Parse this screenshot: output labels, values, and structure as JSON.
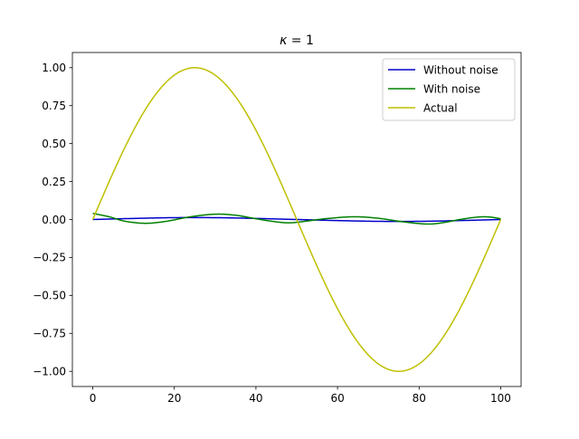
{
  "chart_data": {
    "type": "line",
    "title": "κ = 1",
    "title_parts": {
      "symbol": "κ",
      "rest": " = 1"
    },
    "xlabel": "",
    "ylabel": "",
    "xlim": [
      -5,
      105
    ],
    "ylim": [
      -1.1,
      1.1
    ],
    "xticks": [
      0,
      20,
      40,
      60,
      80,
      100
    ],
    "xtick_labels": [
      "0",
      "20",
      "40",
      "60",
      "80",
      "100"
    ],
    "yticks": [
      -1.0,
      -0.75,
      -0.5,
      -0.25,
      0.0,
      0.25,
      0.5,
      0.75,
      1.0
    ],
    "ytick_labels": [
      "−1.00",
      "−0.75",
      "−0.50",
      "−0.25",
      "0.00",
      "0.25",
      "0.50",
      "0.75",
      "1.00"
    ],
    "grid": false,
    "legend_position": "upper right",
    "series": [
      {
        "name": "Without noise",
        "color": "#0000cc",
        "x": [
          0,
          10,
          20,
          30,
          40,
          50,
          60,
          70,
          80,
          90,
          100
        ],
        "y": [
          0.0,
          0.007,
          0.012,
          0.012,
          0.007,
          0.0,
          -0.007,
          -0.012,
          -0.012,
          -0.007,
          0.0
        ]
      },
      {
        "name": "With noise",
        "color": "#008000",
        "x": [
          0,
          4,
          8,
          13,
          18,
          24,
          30,
          35,
          40,
          44,
          48,
          52,
          57,
          64,
          70,
          76,
          82,
          86,
          90,
          94,
          97,
          100
        ],
        "y": [
          0.04,
          0.018,
          -0.012,
          -0.025,
          -0.012,
          0.018,
          0.035,
          0.028,
          0.005,
          -0.012,
          -0.022,
          -0.012,
          0.005,
          0.018,
          0.008,
          -0.015,
          -0.03,
          -0.02,
          0.0,
          0.015,
          0.017,
          0.005
        ]
      },
      {
        "name": "Actual",
        "color": "#bfbf00",
        "function": "sin",
        "x_start": 0,
        "x_end": 100,
        "x": [
          0,
          10,
          20,
          25,
          30,
          40,
          50,
          60,
          70,
          75,
          80,
          90,
          100
        ],
        "y": [
          0.0,
          0.588,
          0.951,
          1.0,
          0.951,
          0.588,
          0.0,
          -0.588,
          -0.951,
          -1.0,
          -0.951,
          -0.588,
          0.0
        ]
      }
    ]
  }
}
